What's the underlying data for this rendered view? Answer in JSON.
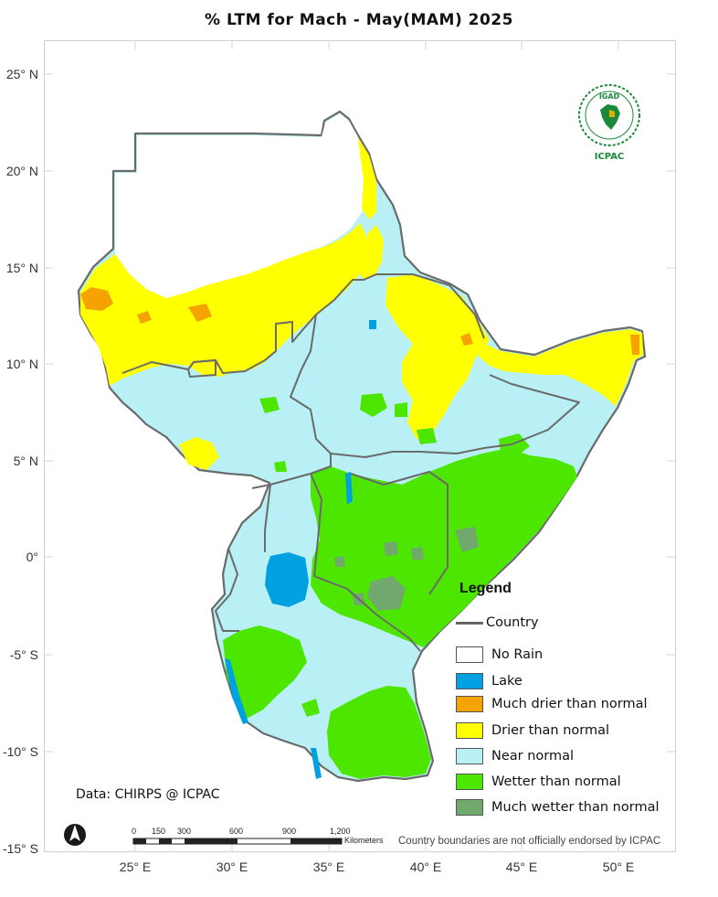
{
  "title": "% LTM  for  Mach - May(MAM) 2025",
  "axes": {
    "lat_labels": [
      "25° N",
      "20° N",
      "15° N",
      "10° N",
      "5° N",
      "0°",
      "-5° S",
      "-10° S",
      "-15° S"
    ],
    "lon_labels": [
      "25° E",
      "30° E",
      "35° E",
      "40° E",
      "45° E",
      "50° E"
    ]
  },
  "legend": {
    "title": "Legend",
    "country_label": "Country",
    "items": [
      {
        "label": "No Rain",
        "color": "#ffffff"
      },
      {
        "label": "Lake",
        "color": "#00a1e0"
      },
      {
        "label": "Much drier than normal",
        "color": "#f5a300"
      },
      {
        "label": "Drier than normal",
        "color": "#ffff00"
      },
      {
        "label": "Near normal",
        "color": "#b8f0f5"
      },
      {
        "label": "Wetter than normal",
        "color": "#4ce600"
      },
      {
        "label": "Much wetter than normal",
        "color": "#70a86e"
      }
    ]
  },
  "data_credit": "Data: CHIRPS @ ICPAC",
  "disclaimer": "Country boundaries are not officially endorsed by ICPAC",
  "scale_bar": {
    "ticks": [
      "0",
      "150",
      "300",
      "600",
      "900",
      "1,200"
    ],
    "unit": "Kilometers"
  },
  "logo": {
    "top_text": "IGAD",
    "bottom_text": "ICPAC"
  },
  "icons": {
    "north_arrow": "north-arrow-icon",
    "logo": "igad-icpac-logo"
  }
}
